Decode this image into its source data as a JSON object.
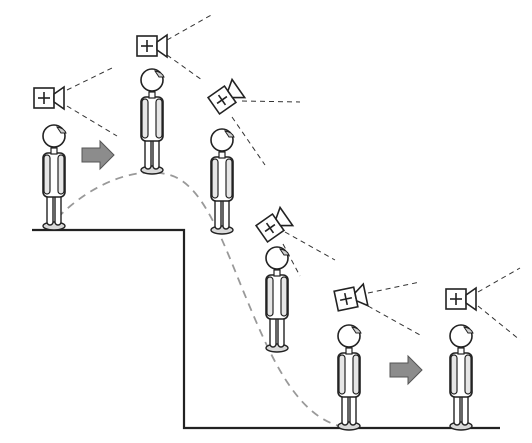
{
  "diagram": {
    "description_label": "Camera-tracked figure moving down a step",
    "figure_count": 6,
    "camera_icon": "camera-crosshair-icon",
    "arrow_icon": "right-arrow-icon",
    "colors": {
      "outline": "#222222",
      "figure_fill": "#ffffff",
      "figure_shade": "#cfcfcf",
      "trajectory": "#999999",
      "arrow_fill": "#8c8c8c",
      "view_line": "#333333"
    }
  }
}
